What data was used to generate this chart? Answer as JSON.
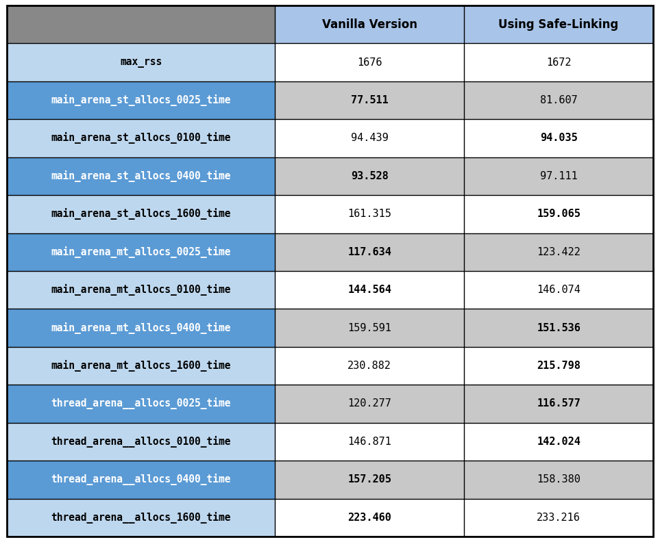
{
  "col_headers": [
    "Vanilla Version",
    "Using Safe-Linking"
  ],
  "rows": [
    {
      "label": "max_rss",
      "v1": "1676",
      "v2": "1672",
      "label_blue": true,
      "label_dark": false,
      "v1_bold": false,
      "v2_bold": false,
      "row_bg": "white"
    },
    {
      "label": "main_arena_st_allocs_0025_time",
      "v1": "77.511",
      "v2": "81.607",
      "label_blue": true,
      "label_dark": true,
      "v1_bold": true,
      "v2_bold": false,
      "row_bg": "light_gray"
    },
    {
      "label": "main_arena_st_allocs_0100_time",
      "v1": "94.439",
      "v2": "94.035",
      "label_blue": false,
      "label_dark": false,
      "v1_bold": false,
      "v2_bold": true,
      "row_bg": "white"
    },
    {
      "label": "main_arena_st_allocs_0400_time",
      "v1": "93.528",
      "v2": "97.111",
      "label_blue": true,
      "label_dark": true,
      "v1_bold": true,
      "v2_bold": false,
      "row_bg": "light_gray"
    },
    {
      "label": "main_arena_st_allocs_1600_time",
      "v1": "161.315",
      "v2": "159.065",
      "label_blue": false,
      "label_dark": false,
      "v1_bold": false,
      "v2_bold": true,
      "row_bg": "white"
    },
    {
      "label": "main_arena_mt_allocs_0025_time",
      "v1": "117.634",
      "v2": "123.422",
      "label_blue": true,
      "label_dark": true,
      "v1_bold": true,
      "v2_bold": false,
      "row_bg": "light_gray"
    },
    {
      "label": "main_arena_mt_allocs_0100_time",
      "v1": "144.564",
      "v2": "146.074",
      "label_blue": false,
      "label_dark": false,
      "v1_bold": true,
      "v2_bold": false,
      "row_bg": "white"
    },
    {
      "label": "main_arena_mt_allocs_0400_time",
      "v1": "159.591",
      "v2": "151.536",
      "label_blue": true,
      "label_dark": true,
      "v1_bold": false,
      "v2_bold": true,
      "row_bg": "light_gray"
    },
    {
      "label": "main_arena_mt_allocs_1600_time",
      "v1": "230.882",
      "v2": "215.798",
      "label_blue": false,
      "label_dark": false,
      "v1_bold": false,
      "v2_bold": true,
      "row_bg": "white"
    },
    {
      "label": "thread_arena__allocs_0025_time",
      "v1": "120.277",
      "v2": "116.577",
      "label_blue": true,
      "label_dark": true,
      "v1_bold": false,
      "v2_bold": true,
      "row_bg": "light_gray"
    },
    {
      "label": "thread_arena__allocs_0100_time",
      "v1": "146.871",
      "v2": "142.024",
      "label_blue": false,
      "label_dark": false,
      "v1_bold": false,
      "v2_bold": true,
      "row_bg": "white"
    },
    {
      "label": "thread_arena__allocs_0400_time",
      "v1": "157.205",
      "v2": "158.380",
      "label_blue": true,
      "label_dark": true,
      "v1_bold": true,
      "v2_bold": false,
      "row_bg": "light_gray"
    },
    {
      "label": "thread_arena__allocs_1600_time",
      "v1": "223.460",
      "v2": "233.216",
      "label_blue": false,
      "label_dark": false,
      "v1_bold": true,
      "v2_bold": false,
      "row_bg": "white"
    }
  ],
  "header_gray_bg": "#888888",
  "header_blue_bg": "#A8C4E8",
  "header_font_size": 12,
  "blue_dark_bg": "#5B9BD5",
  "blue_light_bg": "#BDD7EE",
  "light_gray_bg": "#C8C8C8",
  "white_bg": "#FFFFFF",
  "border_color": "#000000",
  "outer_border_color": "#000000",
  "data_font_size": 11,
  "label_font_size": 10.5,
  "mono_font": "DejaVu Sans Mono"
}
